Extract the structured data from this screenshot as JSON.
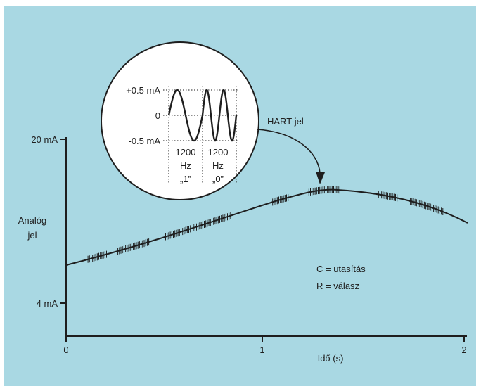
{
  "colors": {
    "frame": "#ffffff",
    "panel": "#a9d8e3",
    "ink": "#1e1e1e",
    "inset_fill": "#ffffff"
  },
  "y_axis": {
    "label_line1": "Analóg",
    "label_line2": "jel",
    "tick_upper": "20 mA",
    "tick_lower": "4 mA"
  },
  "x_axis": {
    "label": "Idő (s)",
    "ticks": [
      "0",
      "1",
      "2"
    ]
  },
  "hart_label": "HART-jel",
  "legend": {
    "c_line": "C = utasítás",
    "r_line": "R = válasz"
  },
  "inset": {
    "amp_pos": "+0.5 mA",
    "amp_zero": "0",
    "amp_neg": "-0.5 mA",
    "freq1_value": "1200",
    "freq1_unit": "Hz",
    "freq1_bit": "„1”",
    "freq2_value": "1200",
    "freq2_unit": "Hz",
    "freq2_bit": "„0”"
  },
  "hart_bursts": [
    {
      "t_start": 0.11,
      "t_end": 0.21
    },
    {
      "t_start": 0.26,
      "t_end": 0.42
    },
    {
      "t_start": 0.5,
      "t_end": 0.63
    },
    {
      "t_start": 0.64,
      "t_end": 0.83
    },
    {
      "t_start": 1.03,
      "t_end": 1.12
    },
    {
      "t_start": 1.22,
      "t_end": 1.38
    },
    {
      "t_start": 1.57,
      "t_end": 1.67
    },
    {
      "t_start": 1.73,
      "t_end": 1.9
    }
  ]
}
